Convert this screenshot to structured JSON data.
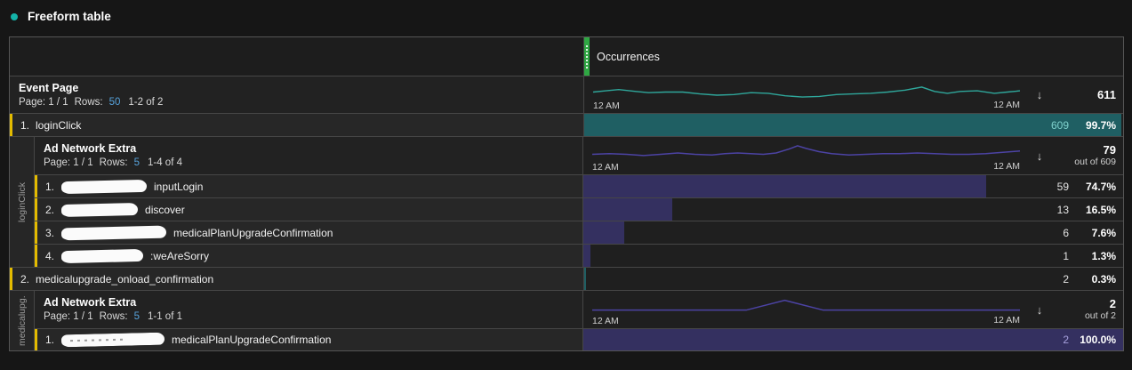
{
  "colors": {
    "accent": "#14b3a8",
    "marker_yellow": "#e3bb00",
    "handle_green": "#2fa743",
    "link_blue": "#57a3dc",
    "bar_teal": "#1f5f63",
    "bar_purple": "#343060",
    "spark_teal": "#2fa79b",
    "spark_purple": "#4c43a4",
    "value_teal": "#7fd2cd",
    "value_lavender": "#a7a1dd"
  },
  "panel": {
    "title": "Freeform table"
  },
  "icons": {
    "sort_descending": "↓"
  },
  "table": {
    "occurrences_header": "Occurrences",
    "event_page": {
      "name": "Event Page",
      "page": "Page: 1 / 1",
      "rows_label": "Rows:",
      "rows_value": "50",
      "range": "1-2 of 2",
      "time_start": "12 AM",
      "time_end": "12 AM",
      "total": "611",
      "spark": [
        [
          0,
          15
        ],
        [
          3,
          13
        ],
        [
          6,
          11
        ],
        [
          10,
          14
        ],
        [
          13,
          16
        ],
        [
          17,
          15
        ],
        [
          21,
          15
        ],
        [
          25,
          18
        ],
        [
          29,
          20
        ],
        [
          33,
          19
        ],
        [
          37,
          16
        ],
        [
          41,
          17
        ],
        [
          45,
          21
        ],
        [
          49,
          23
        ],
        [
          53,
          22
        ],
        [
          57,
          19
        ],
        [
          61,
          18
        ],
        [
          65,
          17
        ],
        [
          69,
          15
        ],
        [
          73,
          12
        ],
        [
          77,
          7
        ],
        [
          80,
          14
        ],
        [
          83,
          17
        ],
        [
          86,
          14
        ],
        [
          90,
          13
        ],
        [
          94,
          17
        ],
        [
          97,
          15
        ],
        [
          100,
          13
        ]
      ]
    },
    "row1": {
      "index": "1.",
      "label": "loginClick",
      "value": "609",
      "pct": "99.7%",
      "bar": 99.7
    },
    "breakdown1": {
      "side_label": "loginClick",
      "dimension": "Ad Network Extra",
      "page": "Page: 1 / 1",
      "rows_label": "Rows:",
      "rows_value": "5",
      "range": "1-4 of 4",
      "time_start": "12 AM",
      "time_end": "12 AM",
      "total": "79",
      "out_of": "out of 609",
      "spark": [
        [
          0,
          17
        ],
        [
          4,
          16
        ],
        [
          8,
          17
        ],
        [
          12,
          19
        ],
        [
          16,
          17
        ],
        [
          20,
          15
        ],
        [
          24,
          17
        ],
        [
          28,
          18
        ],
        [
          31,
          16
        ],
        [
          34,
          15
        ],
        [
          37,
          16
        ],
        [
          40,
          17
        ],
        [
          43,
          15
        ],
        [
          46,
          9
        ],
        [
          48,
          4
        ],
        [
          50,
          8
        ],
        [
          53,
          13
        ],
        [
          56,
          16
        ],
        [
          60,
          18
        ],
        [
          64,
          17
        ],
        [
          68,
          16
        ],
        [
          72,
          16
        ],
        [
          76,
          15
        ],
        [
          80,
          16
        ],
        [
          84,
          17
        ],
        [
          88,
          17
        ],
        [
          92,
          16
        ],
        [
          96,
          14
        ],
        [
          100,
          12
        ]
      ],
      "items": [
        {
          "index": "1.",
          "suffix": "inputLogin",
          "value": "59",
          "pct": "74.7%",
          "bar": 74.7
        },
        {
          "index": "2.",
          "suffix": "discover",
          "value": "13",
          "pct": "16.5%",
          "bar": 16.5
        },
        {
          "index": "3.",
          "suffix": "medicalPlanUpgradeConfirmation",
          "value": "6",
          "pct": "7.6%",
          "bar": 7.6
        },
        {
          "index": "4.",
          "suffix": ":weAreSorry",
          "value": "1",
          "pct": "1.3%",
          "bar": 1.3
        }
      ]
    },
    "row2": {
      "index": "2.",
      "label": "medicalupgrade_onload_confirmation",
      "value": "2",
      "pct": "0.3%",
      "bar": 0.35
    },
    "breakdown2": {
      "side_label": "medicalupg...",
      "dimension": "Ad Network Extra",
      "page": "Page: 1 / 1",
      "rows_label": "Rows:",
      "rows_value": "5",
      "range": "1-1 of 1",
      "time_start": "12 AM",
      "time_end": "12 AM",
      "total": "2",
      "out_of": "out of 2",
      "spark": [
        [
          0,
          20
        ],
        [
          36,
          20
        ],
        [
          45,
          5
        ],
        [
          54,
          20
        ],
        [
          100,
          20
        ]
      ],
      "items": [
        {
          "index": "1.",
          "suffix": "medicalPlanUpgradeConfirmation",
          "value": "2",
          "pct": "100.0%",
          "bar": 100
        }
      ]
    }
  }
}
